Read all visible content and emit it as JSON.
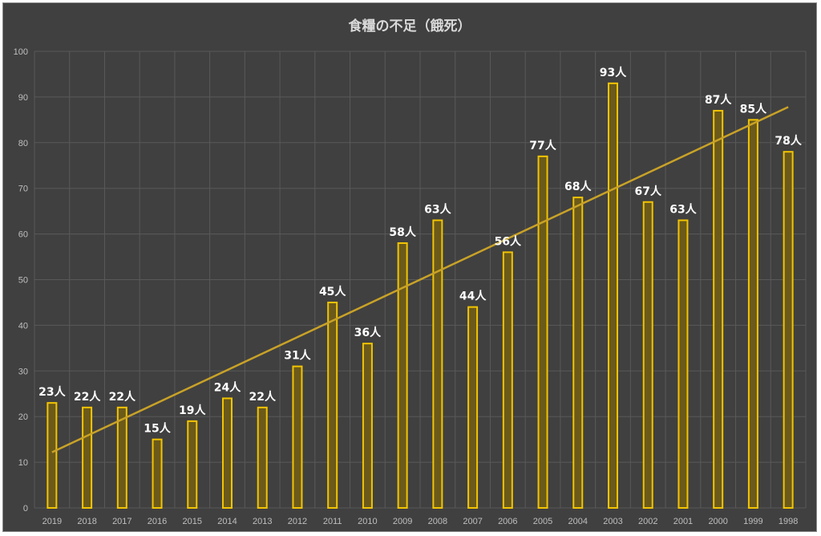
{
  "chart_data": {
    "type": "bar",
    "title": "食糧の不足（餓死）",
    "categories": [
      "2019",
      "2018",
      "2017",
      "2016",
      "2015",
      "2014",
      "2013",
      "2012",
      "2011",
      "2010",
      "2009",
      "2008",
      "2007",
      "2006",
      "2005",
      "2004",
      "2003",
      "2002",
      "2001",
      "2000",
      "1999",
      "1998"
    ],
    "values": [
      23,
      22,
      22,
      15,
      19,
      24,
      22,
      31,
      45,
      36,
      58,
      63,
      44,
      56,
      77,
      68,
      93,
      67,
      63,
      87,
      85,
      78
    ],
    "data_labels": [
      "23人",
      "22人",
      "22人",
      "15人",
      "19人",
      "24人",
      "22人",
      "31人",
      "45人",
      "36人",
      "58人",
      "63人",
      "44人",
      "56人",
      "77人",
      "68人",
      "93人",
      "67人",
      "63人",
      "87人",
      "85人",
      "78人"
    ],
    "ylim": [
      0,
      100
    ],
    "yticks": [
      "0",
      "10",
      "20",
      "30",
      "40",
      "50",
      "60",
      "70",
      "80",
      "90",
      "100"
    ],
    "grid": true,
    "trendline": {
      "type": "linear",
      "start": 12.2,
      "end": 87.8
    },
    "legend": "none",
    "colors": {
      "background": "#404040",
      "bar_edge": "#f2c400",
      "bar_fill": "#6b5a1a",
      "trendline": "#c9a227",
      "grid": "#595959",
      "text": "#ffffff",
      "axis_text": "#bfbfbf"
    }
  }
}
